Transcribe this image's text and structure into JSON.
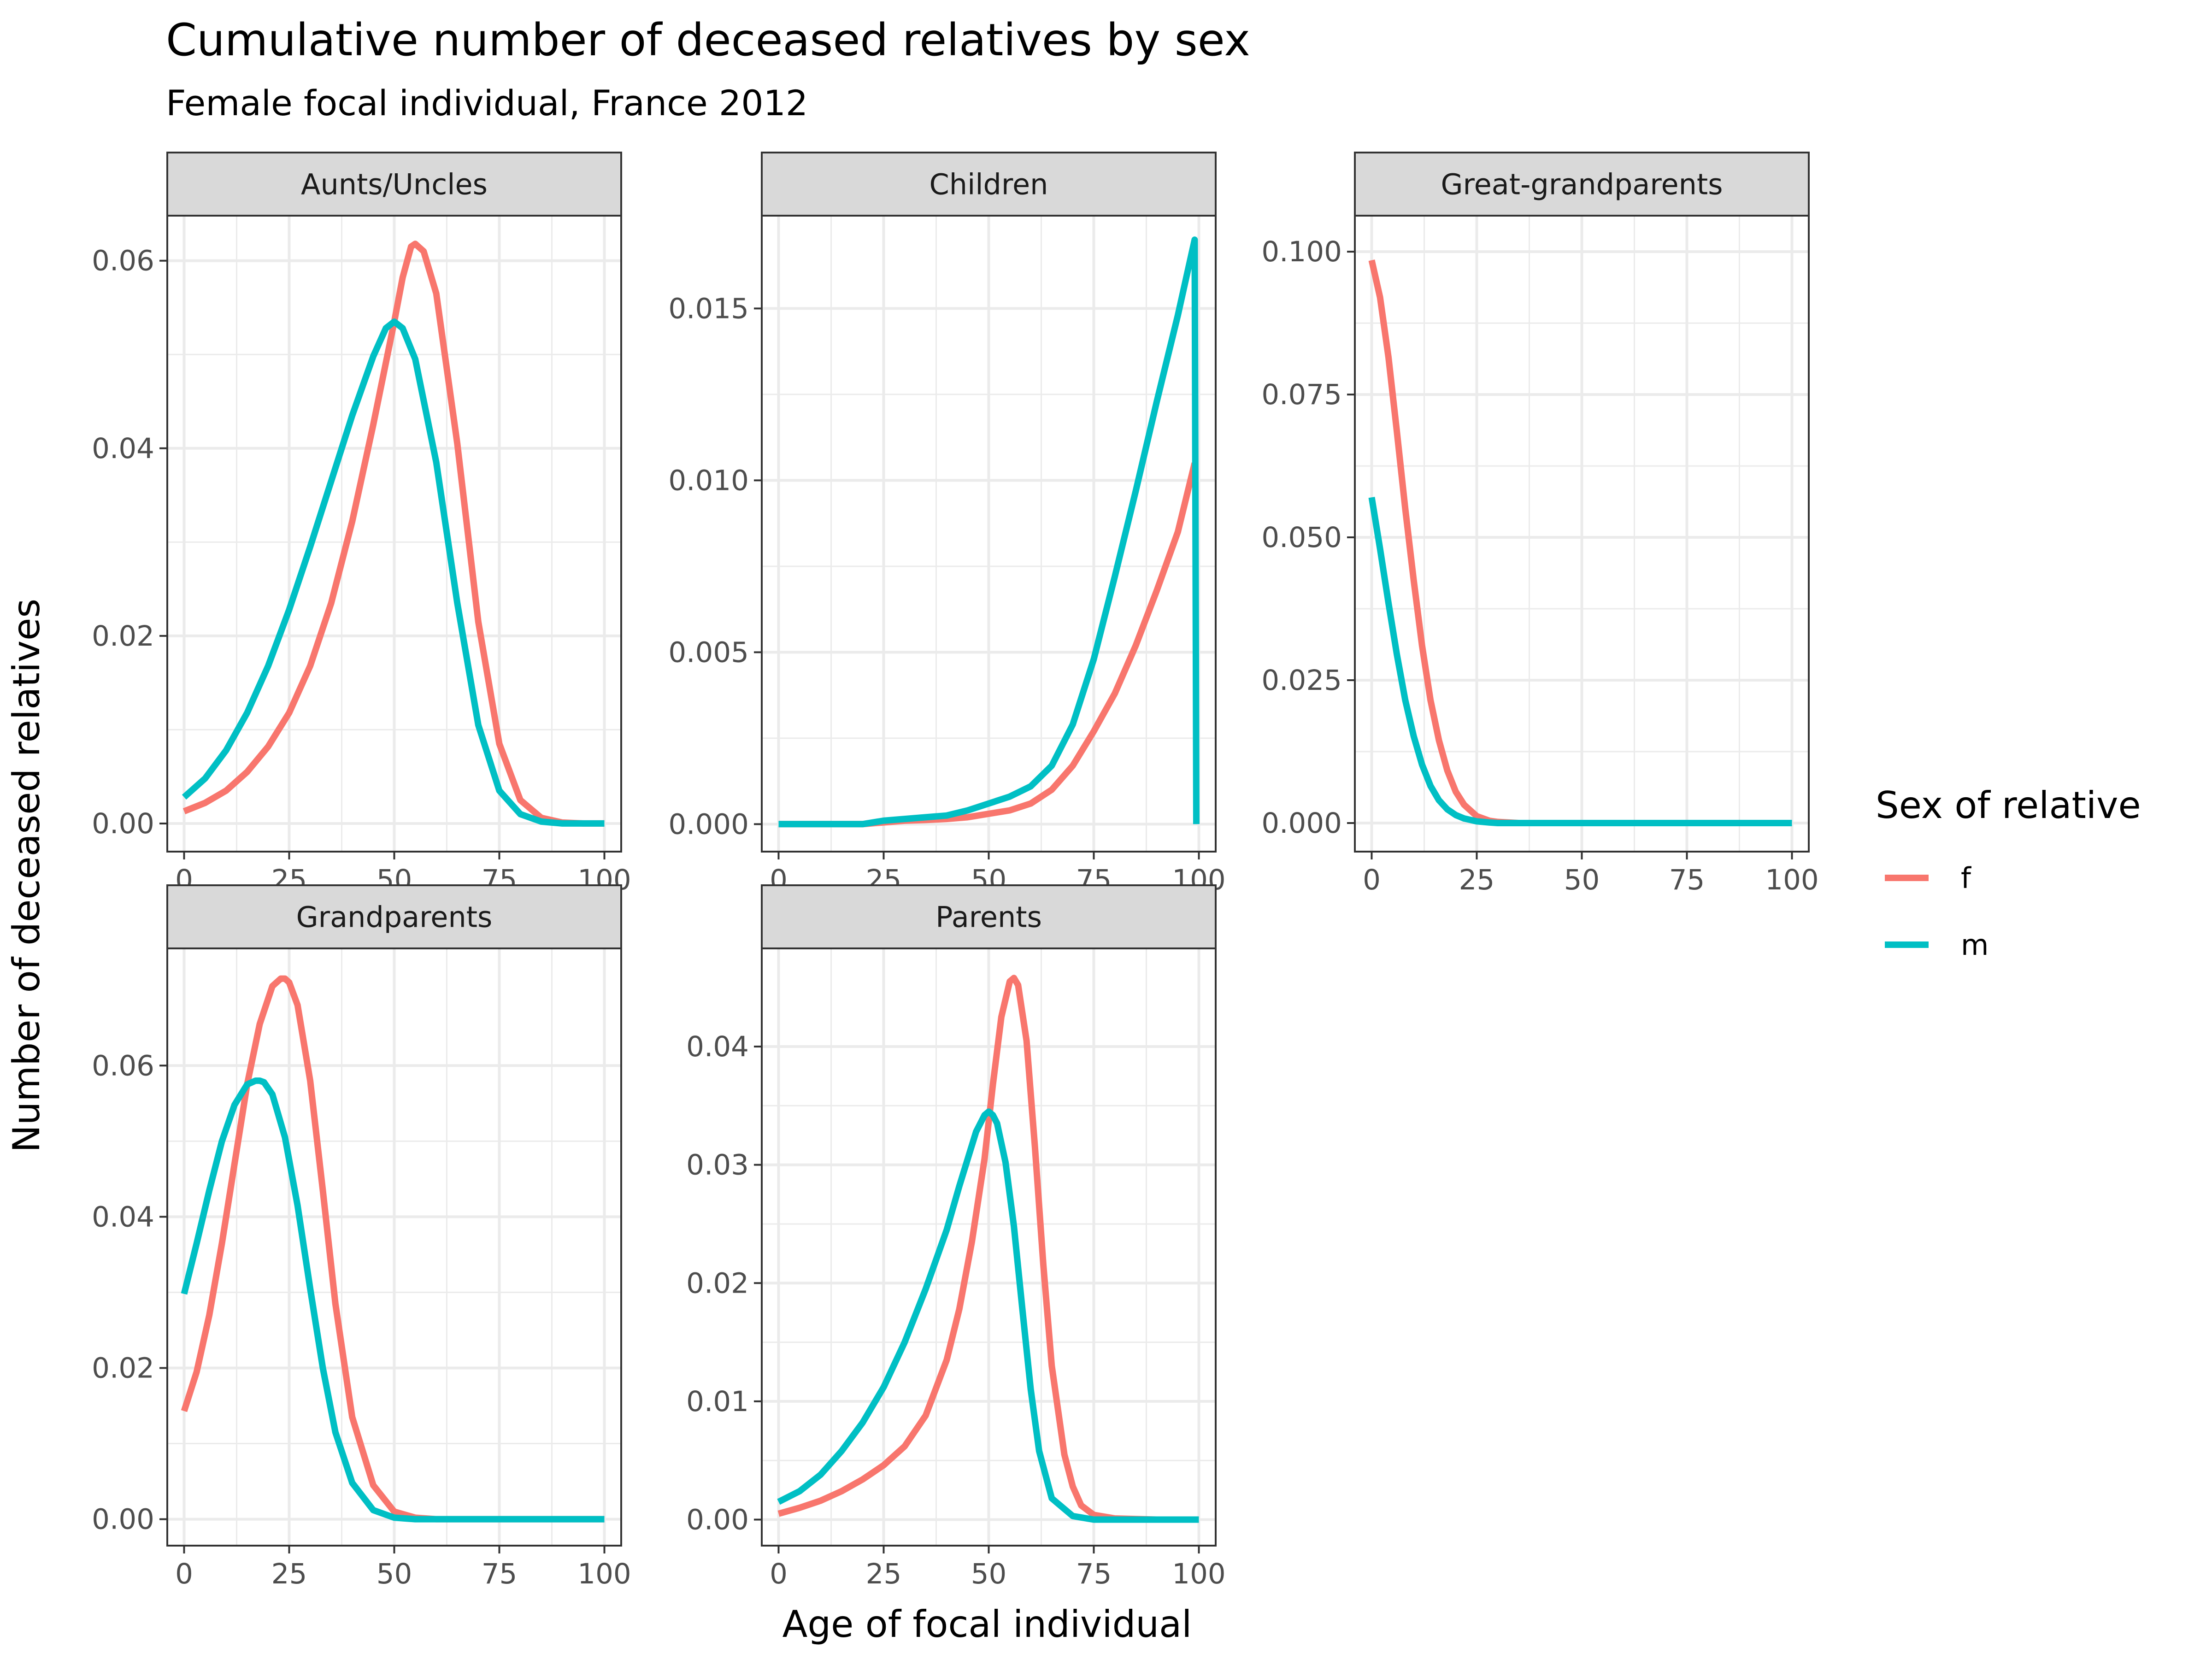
{
  "chart_data": {
    "type": "line",
    "title": "Cumulative number of deceased relatives by sex",
    "subtitle": "Female focal individual, France 2012",
    "xlabel": "Age of focal individual",
    "ylabel": "Number of deceased relatives",
    "legend": {
      "title": "Sex of relative",
      "position": "right",
      "entries": [
        {
          "key": "f",
          "label": "f",
          "color": "#F8766D"
        },
        {
          "key": "m",
          "label": "m",
          "color": "#00BFC4"
        }
      ]
    },
    "grid": true,
    "facets": [
      {
        "name": "Aunts/Uncles",
        "xlim": [
          -4,
          104
        ],
        "ylim": [
          -0.003,
          0.0648
        ],
        "xticks": [
          0,
          25,
          50,
          75,
          100
        ],
        "xtick_labels": [
          "0",
          "25",
          "50",
          "75",
          "100"
        ],
        "yticks": [
          0,
          0.02,
          0.04,
          0.06
        ],
        "ytick_labels": [
          "0.00",
          "0.02",
          "0.04",
          "0.06"
        ],
        "series": [
          {
            "sex": "f",
            "x": [
              0,
              5,
              10,
              15,
              20,
              25,
              30,
              35,
              40,
              45,
              50,
              52,
              54,
              55,
              57,
              60,
              65,
              70,
              75,
              80,
              85,
              90,
              95,
              100
            ],
            "y": [
              0.0013,
              0.0022,
              0.0035,
              0.0055,
              0.0082,
              0.0118,
              0.0168,
              0.0235,
              0.0322,
              0.0425,
              0.0535,
              0.0582,
              0.0615,
              0.0618,
              0.061,
              0.0565,
              0.0405,
              0.0215,
              0.0085,
              0.0025,
              0.0006,
              0.0001,
              0.0,
              0.0
            ]
          },
          {
            "sex": "m",
            "x": [
              0,
              5,
              10,
              15,
              20,
              25,
              30,
              35,
              40,
              45,
              48,
              50,
              52,
              55,
              60,
              65,
              70,
              75,
              80,
              85,
              90,
              95,
              100
            ],
            "y": [
              0.0028,
              0.0048,
              0.0078,
              0.0118,
              0.0168,
              0.0228,
              0.0295,
              0.0365,
              0.0435,
              0.0498,
              0.0528,
              0.0535,
              0.0528,
              0.0495,
              0.0385,
              0.0235,
              0.0105,
              0.0035,
              0.001,
              0.0002,
              0.0,
              0.0,
              0.0
            ]
          }
        ]
      },
      {
        "name": "Children",
        "xlim": [
          -4,
          104
        ],
        "ylim": [
          -0.0008,
          0.0177
        ],
        "xticks": [
          0,
          25,
          50,
          75,
          100
        ],
        "xtick_labels": [
          "0",
          "25",
          "50",
          "75",
          "100"
        ],
        "yticks": [
          0,
          0.005,
          0.01,
          0.015
        ],
        "ytick_labels": [
          "0.000",
          "0.005",
          "0.010",
          "0.015"
        ],
        "series": [
          {
            "sex": "f",
            "x": [
              0,
              15,
              20,
              25,
              30,
              35,
              40,
              45,
              50,
              55,
              60,
              65,
              70,
              75,
              80,
              85,
              90,
              95,
              99
            ],
            "y": [
              0.0,
              0.0,
              0.0,
              5e-05,
              0.0001,
              0.00012,
              0.00015,
              0.0002,
              0.0003,
              0.0004,
              0.0006,
              0.001,
              0.0017,
              0.0027,
              0.0038,
              0.0052,
              0.0068,
              0.0085,
              0.0105
            ]
          },
          {
            "sex": "m",
            "x": [
              0,
              15,
              20,
              25,
              30,
              35,
              40,
              45,
              50,
              55,
              60,
              65,
              70,
              75,
              80,
              85,
              90,
              95,
              99,
              99.4
            ],
            "y": [
              0.0,
              0.0,
              0.0,
              0.0001,
              0.00015,
              0.0002,
              0.00025,
              0.0004,
              0.0006,
              0.0008,
              0.0011,
              0.0017,
              0.0029,
              0.0048,
              0.0072,
              0.0097,
              0.0123,
              0.0148,
              0.017,
              0.0
            ]
          }
        ]
      },
      {
        "name": "Great-grandparents",
        "xlim": [
          -4,
          104
        ],
        "ylim": [
          -0.005,
          0.1063
        ],
        "xticks": [
          0,
          25,
          50,
          75,
          100
        ],
        "xtick_labels": [
          "0",
          "25",
          "50",
          "75",
          "100"
        ],
        "yticks": [
          0,
          0.025,
          0.05,
          0.075,
          0.1
        ],
        "ytick_labels": [
          "0.000",
          "0.025",
          "0.050",
          "0.075",
          "0.100"
        ],
        "series": [
          {
            "sex": "f",
            "x": [
              0,
              2,
              4,
              6,
              8,
              10,
              12,
              14,
              16,
              18,
              20,
              22,
              25,
              28,
              30,
              35,
              40,
              50,
              60,
              70,
              80,
              90,
              100
            ],
            "y": [
              0.0985,
              0.092,
              0.0815,
              0.0685,
              0.055,
              0.0425,
              0.031,
              0.0215,
              0.0145,
              0.0092,
              0.0055,
              0.0032,
              0.0012,
              0.0004,
              0.0002,
              0.0,
              0.0,
              0.0,
              0.0,
              0.0,
              0.0,
              0.0,
              0.0
            ]
          },
          {
            "sex": "m",
            "x": [
              0,
              2,
              4,
              6,
              8,
              10,
              12,
              14,
              16,
              18,
              20,
              22,
              25,
              28,
              30,
              35,
              40,
              50,
              60,
              70,
              80,
              90,
              100
            ],
            "y": [
              0.057,
              0.048,
              0.0385,
              0.0295,
              0.0215,
              0.0152,
              0.0102,
              0.0065,
              0.004,
              0.0024,
              0.0014,
              0.0008,
              0.0003,
              0.0001,
              0.0,
              0.0,
              0.0,
              0.0,
              0.0,
              0.0,
              0.0,
              0.0,
              0.0
            ]
          }
        ]
      },
      {
        "name": "Grandparents",
        "xlim": [
          -4,
          104
        ],
        "ylim": [
          -0.0035,
          0.0755
        ],
        "xticks": [
          0,
          25,
          50,
          75,
          100
        ],
        "xtick_labels": [
          "0",
          "25",
          "50",
          "75",
          "100"
        ],
        "yticks": [
          0,
          0.02,
          0.04,
          0.06
        ],
        "ytick_labels": [
          "0.00",
          "0.02",
          "0.04",
          "0.06"
        ],
        "series": [
          {
            "sex": "f",
            "x": [
              0,
              3,
              6,
              9,
              12,
              15,
              18,
              21,
              23,
              24,
              25,
              27,
              30,
              33,
              36,
              40,
              45,
              50,
              55,
              60,
              70,
              80,
              90,
              100
            ],
            "y": [
              0.0143,
              0.0195,
              0.027,
              0.0365,
              0.047,
              0.0575,
              0.0655,
              0.0705,
              0.0715,
              0.0715,
              0.071,
              0.068,
              0.058,
              0.0435,
              0.0285,
              0.0135,
              0.0045,
              0.001,
              0.0002,
              0.0,
              0.0,
              0.0,
              0.0,
              0.0
            ]
          },
          {
            "sex": "m",
            "x": [
              0,
              3,
              6,
              9,
              12,
              15,
              17,
              18,
              19,
              21,
              24,
              27,
              30,
              33,
              36,
              40,
              45,
              50,
              55,
              60,
              70,
              80,
              90,
              100
            ],
            "y": [
              0.0298,
              0.0365,
              0.0435,
              0.05,
              0.0548,
              0.0575,
              0.058,
              0.058,
              0.0578,
              0.0562,
              0.0505,
              0.0415,
              0.0305,
              0.02,
              0.0115,
              0.0048,
              0.0012,
              0.0002,
              0.0,
              0.0,
              0.0,
              0.0,
              0.0,
              0.0
            ]
          }
        ]
      },
      {
        "name": "Parents",
        "xlim": [
          -4,
          104
        ],
        "ylim": [
          -0.0022,
          0.0483
        ],
        "xticks": [
          0,
          25,
          50,
          75,
          100
        ],
        "xtick_labels": [
          "0",
          "25",
          "50",
          "75",
          "100"
        ],
        "yticks": [
          0,
          0.01,
          0.02,
          0.03,
          0.04
        ],
        "ytick_labels": [
          "0.00",
          "0.01",
          "0.02",
          "0.03",
          "0.04"
        ],
        "series": [
          {
            "sex": "f",
            "x": [
              0,
              5,
              10,
              15,
              20,
              25,
              30,
              35,
              40,
              43,
              46,
              49,
              51,
              53,
              55,
              56,
              57,
              59,
              61,
              63,
              65,
              68,
              70,
              72,
              75,
              80,
              90,
              100
            ],
            "y": [
              0.0005,
              0.001,
              0.0016,
              0.0024,
              0.0034,
              0.0046,
              0.0062,
              0.0088,
              0.0135,
              0.0178,
              0.0235,
              0.0305,
              0.0368,
              0.0425,
              0.0455,
              0.0458,
              0.0452,
              0.0405,
              0.0315,
              0.0215,
              0.013,
              0.0055,
              0.0028,
              0.0012,
              0.0004,
              0.0001,
              0.0,
              0.0
            ]
          },
          {
            "sex": "m",
            "x": [
              0,
              5,
              10,
              15,
              20,
              25,
              30,
              35,
              40,
              43,
              45,
              47,
              49,
              50,
              51,
              52,
              54,
              56,
              58,
              60,
              62,
              65,
              70,
              75,
              80,
              90,
              100
            ],
            "y": [
              0.0015,
              0.0024,
              0.0038,
              0.0058,
              0.0082,
              0.0112,
              0.015,
              0.0195,
              0.0245,
              0.0282,
              0.0305,
              0.0328,
              0.0342,
              0.0345,
              0.0342,
              0.0335,
              0.0302,
              0.0248,
              0.0178,
              0.011,
              0.0058,
              0.0018,
              0.0003,
              0.0,
              0.0,
              0.0,
              0.0
            ]
          }
        ]
      }
    ]
  }
}
